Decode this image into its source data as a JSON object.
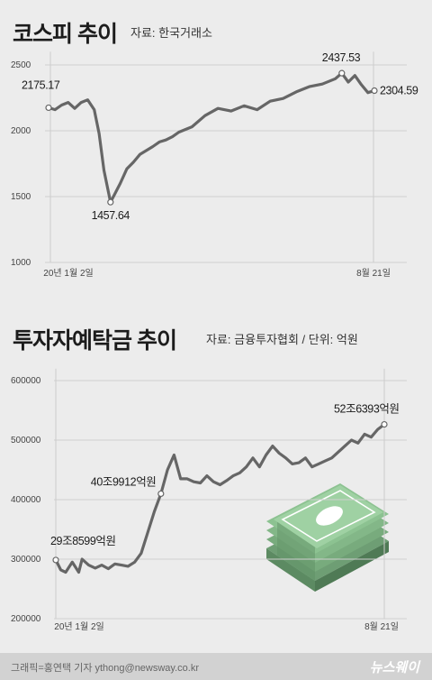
{
  "charts": [
    {
      "title": "코스피 추이",
      "source": "자료: 한국거래소"
    },
    {
      "title": "투자자예탁금 추이",
      "source": "자료: 금융투자협회 / 단위: 억원"
    }
  ],
  "chart_data": [
    {
      "type": "line",
      "title": "코스피 추이",
      "y_ticks": [
        "2500",
        "2000",
        "1500",
        "1000"
      ],
      "ylim": [
        1000,
        2600
      ],
      "x_labels": [
        "20년 1월 2일",
        "8월 21일"
      ],
      "x": [
        0,
        2,
        4,
        6,
        8,
        10,
        12,
        14,
        15.5,
        17,
        19,
        22,
        24,
        26,
        28,
        30,
        32,
        34,
        36,
        38,
        40,
        44,
        48,
        52,
        56,
        60,
        64,
        68,
        72,
        76,
        80,
        84,
        88,
        90,
        92,
        94,
        96,
        98,
        100
      ],
      "values": [
        2175.17,
        2160,
        2195,
        2215,
        2170,
        2215,
        2235,
        2160,
        1980,
        1700,
        1457.64,
        1600,
        1710,
        1760,
        1820,
        1850,
        1880,
        1915,
        1930,
        1955,
        1990,
        2030,
        2115,
        2170,
        2150,
        2190,
        2160,
        2225,
        2245,
        2295,
        2335,
        2355,
        2395,
        2437.53,
        2370,
        2420,
        2350,
        2290,
        2304.59
      ],
      "annotations": [
        {
          "label": "2175.17",
          "index": 0
        },
        {
          "label": "1457.64",
          "index": 10
        },
        {
          "label": "2437.53",
          "index": 33
        },
        {
          "label": "2304.59",
          "index": 38
        }
      ],
      "color": "#666666"
    },
    {
      "type": "line",
      "title": "투자자예탁금 추이",
      "unit": "억원",
      "y_ticks": [
        "600000",
        "500000",
        "400000",
        "300000",
        "200000"
      ],
      "ylim": [
        200000,
        620000
      ],
      "x_labels": [
        "20년 1월 2일",
        "8월 21일"
      ],
      "x": [
        0,
        1.5,
        3,
        5,
        7,
        8,
        10,
        12,
        14,
        16,
        18,
        20,
        22,
        24,
        26,
        28,
        30,
        32,
        34,
        36,
        38,
        40,
        42,
        44,
        46,
        48,
        50,
        52,
        54,
        56,
        58,
        60,
        62,
        64,
        66,
        68,
        70,
        72,
        74,
        76,
        78,
        80,
        82,
        84,
        86,
        88,
        90,
        92,
        94,
        96,
        98,
        100
      ],
      "values": [
        298599,
        282000,
        278000,
        295000,
        278000,
        300000,
        290000,
        285000,
        290000,
        284000,
        292000,
        290000,
        288000,
        295000,
        310000,
        345000,
        380000,
        409912,
        450000,
        475000,
        435000,
        435000,
        430000,
        428000,
        440000,
        430000,
        425000,
        432000,
        440000,
        445000,
        455000,
        470000,
        455000,
        475000,
        490000,
        478000,
        470000,
        460000,
        462000,
        470000,
        455000,
        460000,
        465000,
        470000,
        480000,
        490000,
        500000,
        495000,
        510000,
        505000,
        518000,
        526393
      ],
      "annotations": [
        {
          "label": "29조8599억원",
          "index": 0
        },
        {
          "label": "40조9912억원",
          "index": 17
        },
        {
          "label": "52조6393억원",
          "index": 51
        }
      ],
      "color": "#666666"
    }
  ],
  "footer": {
    "credit": "그래픽=홍연택 기자 ythong@newsway.co.kr",
    "brand": "뉴스웨이"
  }
}
